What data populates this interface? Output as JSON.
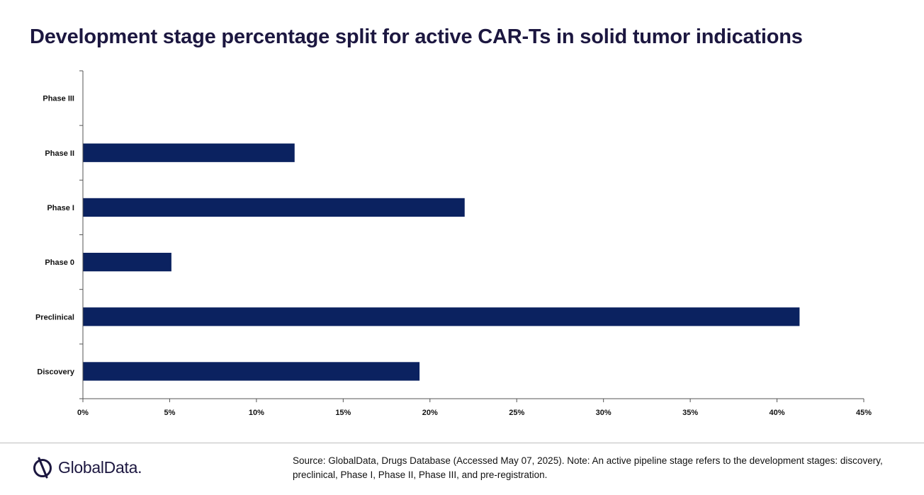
{
  "title": "Development stage percentage split for active CAR-Ts in solid tumor indications",
  "chart_data": {
    "type": "bar",
    "orientation": "horizontal",
    "categories": [
      "Phase III",
      "Phase II",
      "Phase I",
      "Phase 0",
      "Preclinical",
      "Discovery"
    ],
    "values": [
      0,
      12.2,
      22.0,
      5.1,
      41.3,
      19.4
    ],
    "xlim": [
      0,
      45
    ],
    "xticks": [
      "0%",
      "5%",
      "10%",
      "15%",
      "20%",
      "25%",
      "30%",
      "35%",
      "40%",
      "45%"
    ],
    "bar_color": "#0b2260",
    "grid": false
  },
  "footer": {
    "source": "Source: GlobalData, Drugs Database (Accessed May 07, 2025). Note: An active pipeline stage refers to the development stages: discovery, preclinical, Phase I, Phase II, Phase III, and pre-registration.",
    "logo_text": "GlobalData."
  }
}
